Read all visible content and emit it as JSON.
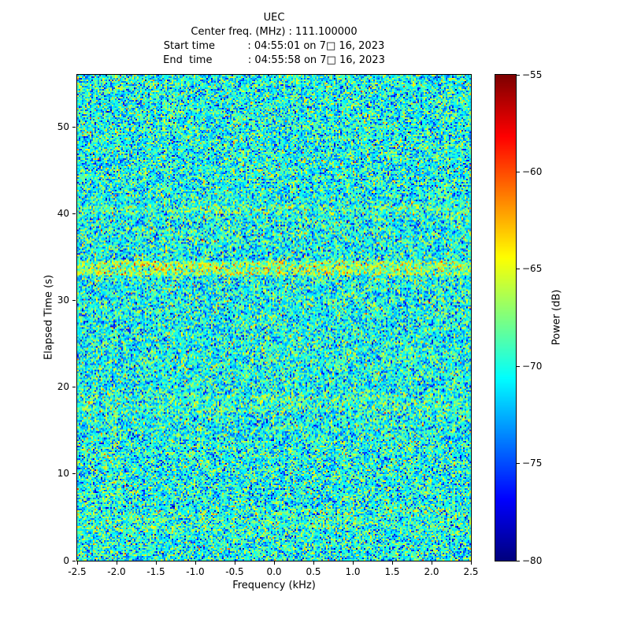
{
  "title": "UEC",
  "subtitle_lines": [
    "Center freq. (MHz) : 111.100000",
    "Start time          : 04:55:01 on 7□ 16, 2023",
    "End  time           : 04:55:58 on 7□ 16, 2023"
  ],
  "chart_data": {
    "type": "heatmap",
    "title": "UEC",
    "annotations": [
      "Center freq. (MHz) : 111.100000",
      "Start time : 04:55:01 on 7□ 16, 2023",
      "End time : 04:55:58 on 7□ 16, 2023"
    ],
    "xlabel": "Frequency (kHz)",
    "ylabel": "Elapsed Time (s)",
    "xlim": [
      -2.5,
      2.5
    ],
    "ylim": [
      0,
      56
    ],
    "grid": false,
    "xticks": {
      "values": [
        -2.5,
        -2.0,
        -1.5,
        -1.0,
        -0.5,
        0.0,
        0.5,
        1.0,
        1.5,
        2.0,
        2.5
      ],
      "labels": [
        "-2.5",
        "-2.0",
        "-1.5",
        "-1.0",
        "-0.5",
        "0.0",
        "0.5",
        "1.0",
        "1.5",
        "2.0",
        "2.5"
      ]
    },
    "yticks": {
      "values": [
        0,
        10,
        20,
        30,
        40,
        50
      ],
      "labels": [
        "0",
        "10",
        "20",
        "30",
        "40",
        "50"
      ]
    },
    "colorbar": {
      "label": "Power (dB)",
      "min": -80,
      "max": -55,
      "colormap": "jet",
      "ticks": {
        "values": [
          -55,
          -60,
          -65,
          -70,
          -75,
          -80
        ],
        "labels": [
          "−55",
          "−60",
          "−65",
          "−70",
          "−75",
          "−80"
        ]
      }
    },
    "noise": {
      "description": "broadband noise floor, random speckle over full band",
      "seed": 42,
      "mean_db": -70.2,
      "sigma_db": 3.1,
      "clip_db": [
        -80,
        -55
      ],
      "bands": [
        {
          "t0": 33.0,
          "t1": 34.6,
          "boost_db": 3.0
        },
        {
          "t0": 40.0,
          "t1": 41.0,
          "boost_db": 1.2
        },
        {
          "t0": 17.0,
          "t1": 19.0,
          "boost_db": 0.8
        },
        {
          "t0": 3.0,
          "t1": 6.0,
          "boost_db": 0.6
        }
      ]
    }
  }
}
